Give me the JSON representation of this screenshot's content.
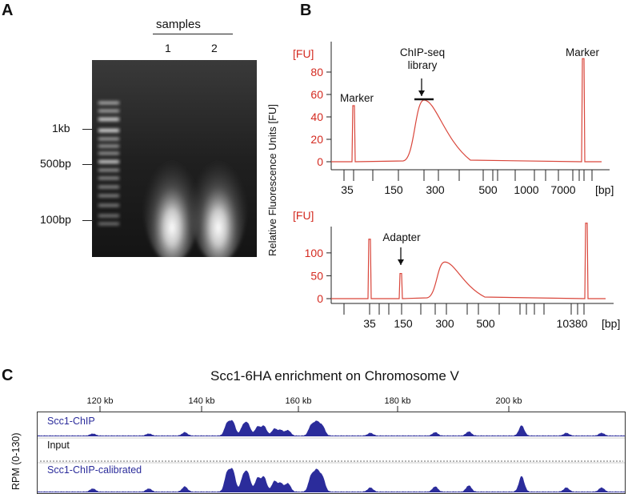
{
  "panels": {
    "a": {
      "letter": "A",
      "samples_label": "samples",
      "lanes": [
        "1",
        "2"
      ],
      "ladder_labels": [
        "1kb",
        "500bp",
        "100bp"
      ]
    },
    "b": {
      "letter": "B",
      "y_axis_label": "Relative Fluorescence Units [FU]"
    },
    "c": {
      "letter": "C",
      "title": "Scc1-6HA enrichment on Chromosome V",
      "side_label": "RPM (0-130)",
      "coord_ticks": [
        "120 kb",
        "140 kb",
        "160 kb",
        "180 kb",
        "200 kb"
      ],
      "tracks": [
        "Scc1-ChIP",
        "Input",
        "Scc1-ChIP-calibrated"
      ]
    }
  },
  "chart_data": [
    {
      "type": "line",
      "unit_label": "[FU]",
      "x_unit": "[bp]",
      "x_ticks": [
        "35",
        "150",
        "300",
        "500",
        "1000",
        "7000"
      ],
      "y_ticks": [
        0,
        20,
        40,
        60,
        80
      ],
      "ylim": [
        0,
        100
      ],
      "annotations": [
        {
          "text": "Marker",
          "x": "35"
        },
        {
          "text": "ChIP-seq\nlibrary",
          "x": "250"
        },
        {
          "text": "Marker",
          "x": "7000"
        }
      ],
      "series": [
        {
          "peaks": [
            {
              "x": "35",
              "y": 50
            },
            {
              "x": "250",
              "y": 55
            },
            {
              "x": "7000",
              "y": 92
            }
          ]
        }
      ]
    },
    {
      "type": "line",
      "unit_label": "[FU]",
      "x_unit": "[bp]",
      "x_ticks": [
        "35",
        "150",
        "300",
        "500",
        "10380"
      ],
      "y_ticks": [
        0,
        50,
        100
      ],
      "ylim": [
        0,
        140
      ],
      "annotations": [
        {
          "text": "Adapter",
          "x": "150"
        }
      ],
      "series": [
        {
          "peaks": [
            {
              "x": "35",
              "y": 130
            },
            {
              "x": "150",
              "y": 55
            },
            {
              "x": "300",
              "y": 80
            },
            {
              "x": "10380",
              "y": 165
            }
          ]
        }
      ]
    }
  ],
  "colors": {
    "trace": "#d9463b",
    "axis_text": "#d42a20",
    "track_fill": "#2b2c9b",
    "track_label": "#2b2c9b"
  }
}
